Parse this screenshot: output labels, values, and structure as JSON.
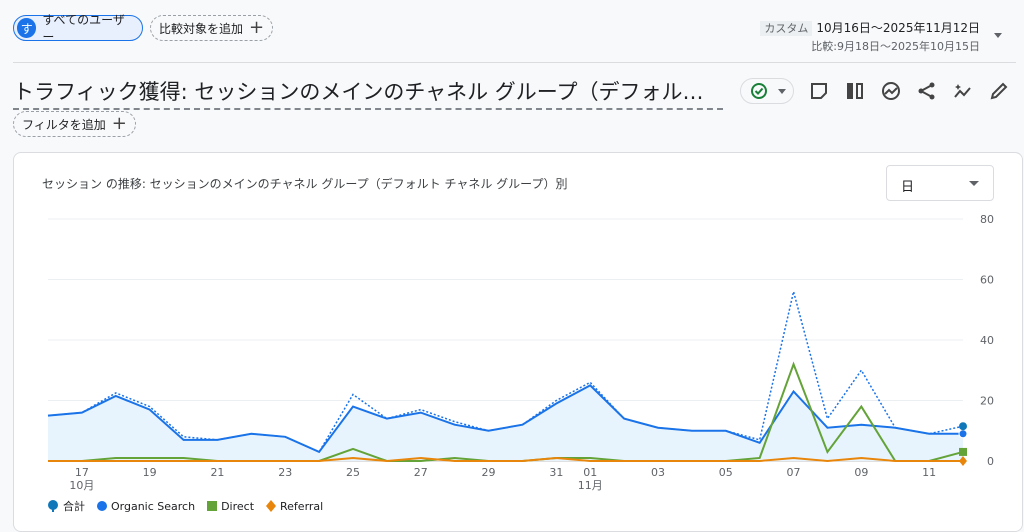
{
  "segment": {
    "avatar": "す",
    "label": "すべてのユーザー"
  },
  "add_comparison": "比較対象を追加",
  "date": {
    "tag": "カスタム",
    "range": "10月16日～2025年11月12日",
    "compare": "比較:9月18日～2025年10月15日"
  },
  "title": "トラフィック獲得: セッションのメインのチャネル グループ（デフォルト チャネル グループ）",
  "add_filter": "フィルタを追加",
  "icons": [
    "check-circle-icon",
    "note-icon",
    "compare-columns-icon",
    "insights-icon",
    "share-icon",
    "sparkle-trend-icon",
    "pencil-icon"
  ],
  "card": {
    "title": "セッション の推移: セッションのメインのチャネル グループ（デフォルト チャネル グループ）別",
    "granularity": "日"
  },
  "chart_data": {
    "type": "line",
    "x": [
      "10-16",
      "10-17",
      "10-18",
      "10-19",
      "10-20",
      "10-21",
      "10-22",
      "10-23",
      "10-24",
      "10-25",
      "10-26",
      "10-27",
      "10-28",
      "10-29",
      "10-30",
      "10-31",
      "11-01",
      "11-02",
      "11-03",
      "11-04",
      "11-05",
      "11-06",
      "11-07",
      "11-08",
      "11-09",
      "11-10",
      "11-11",
      "11-12"
    ],
    "x_tick_labels": [
      {
        "i": 1,
        "t": "17",
        "sub": "10月"
      },
      {
        "i": 3,
        "t": "19"
      },
      {
        "i": 5,
        "t": "21"
      },
      {
        "i": 7,
        "t": "23"
      },
      {
        "i": 9,
        "t": "25"
      },
      {
        "i": 11,
        "t": "27"
      },
      {
        "i": 13,
        "t": "29"
      },
      {
        "i": 15,
        "t": "31"
      },
      {
        "i": 16,
        "t": "01",
        "sub": "11月"
      },
      {
        "i": 18,
        "t": "03"
      },
      {
        "i": 20,
        "t": "05"
      },
      {
        "i": 22,
        "t": "07"
      },
      {
        "i": 24,
        "t": "09"
      },
      {
        "i": 26,
        "t": "11"
      }
    ],
    "y_ticks": [
      0,
      20,
      40,
      60,
      80
    ],
    "ylim": [
      0,
      80
    ],
    "y_axis_side": "right",
    "grid": true,
    "legend_placement": "bottom-left",
    "series": [
      {
        "name": "合計",
        "color": "#1a73e8",
        "style": "dotted",
        "values": [
          15,
          16,
          22.5,
          18,
          8,
          7,
          9,
          8,
          3,
          22,
          14,
          17,
          13,
          10,
          12,
          20,
          26,
          14,
          11,
          10,
          10,
          7,
          56,
          14,
          30,
          11,
          9,
          11.5
        ]
      },
      {
        "name": "Organic Search",
        "color": "#1a73e8",
        "style": "solid",
        "area": true,
        "values": [
          15,
          16,
          21.5,
          17,
          7,
          7,
          9,
          8,
          3,
          18,
          14,
          16,
          12,
          10,
          12,
          19,
          25,
          14,
          11,
          10,
          10,
          6,
          23,
          11,
          12,
          11,
          9,
          9
        ]
      },
      {
        "name": "Direct",
        "color": "#64a338",
        "style": "solid",
        "values": [
          0,
          0,
          1,
          1,
          1,
          0,
          0,
          0,
          0,
          4,
          0,
          0,
          1,
          0,
          0,
          1,
          1,
          0,
          0,
          0,
          0,
          1,
          32,
          3,
          18,
          0,
          0,
          3
        ]
      },
      {
        "name": "Referral",
        "color": "#e8860c",
        "style": "solid",
        "values": [
          0,
          0,
          0,
          0,
          0,
          0,
          0,
          0,
          0,
          1,
          0,
          1,
          0,
          0,
          0,
          1,
          0,
          0,
          0,
          0,
          0,
          0,
          1,
          0,
          1,
          0,
          0,
          0
        ]
      }
    ]
  }
}
